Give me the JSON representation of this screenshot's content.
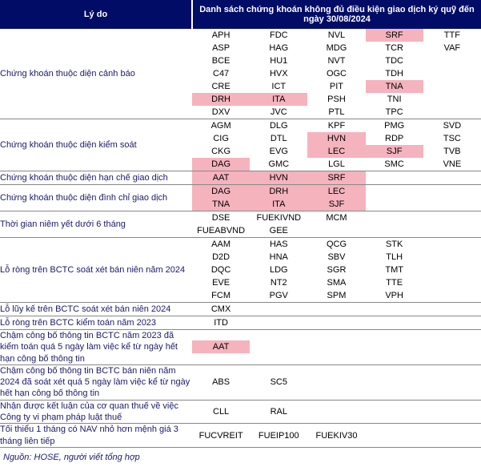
{
  "colors": {
    "header_bg": "#000c66",
    "header_text": "#ffffff",
    "reason_text": "#1a1a6a",
    "highlight_bg": "#f5b3bd",
    "border": "#888888"
  },
  "header": {
    "left": "Lý do",
    "right": "Danh sách chứng khoán không đủ điều kiện giao dịch ký quỹ đến ngày 30/08/2024"
  },
  "sections": [
    {
      "reason": "Chứng khoán thuộc diện cảnh báo",
      "rows": [
        [
          {
            "t": "APH"
          },
          {
            "t": "FDC"
          },
          {
            "t": "NVL"
          },
          {
            "t": "SRF",
            "hl": true
          },
          {
            "t": "TTF"
          }
        ],
        [
          {
            "t": "ASP"
          },
          {
            "t": "HAG"
          },
          {
            "t": "MDG"
          },
          {
            "t": "TCR"
          },
          {
            "t": "VAF"
          }
        ],
        [
          {
            "t": "BCE"
          },
          {
            "t": "HU1"
          },
          {
            "t": "NVT"
          },
          {
            "t": "TDC"
          },
          {
            "t": ""
          }
        ],
        [
          {
            "t": "C47"
          },
          {
            "t": "HVX"
          },
          {
            "t": "OGC"
          },
          {
            "t": "TDH"
          },
          {
            "t": ""
          }
        ],
        [
          {
            "t": "CRE"
          },
          {
            "t": "ICT"
          },
          {
            "t": "PIT"
          },
          {
            "t": "TNA",
            "hl": true
          },
          {
            "t": ""
          }
        ],
        [
          {
            "t": "DRH",
            "hl": true
          },
          {
            "t": "ITA",
            "hl": true
          },
          {
            "t": "PSH"
          },
          {
            "t": "TNI"
          },
          {
            "t": ""
          }
        ],
        [
          {
            "t": "DXV"
          },
          {
            "t": "JVC"
          },
          {
            "t": "PTL"
          },
          {
            "t": "TPC"
          },
          {
            "t": ""
          }
        ]
      ]
    },
    {
      "reason": "Chứng khoán thuộc diện kiểm soát",
      "rows": [
        [
          {
            "t": "AGM"
          },
          {
            "t": "DLG"
          },
          {
            "t": "KPF"
          },
          {
            "t": "PMG"
          },
          {
            "t": "SVD"
          }
        ],
        [
          {
            "t": "CIG"
          },
          {
            "t": "DTL"
          },
          {
            "t": "HVN",
            "hl": true
          },
          {
            "t": "RDP"
          },
          {
            "t": "TSC"
          }
        ],
        [
          {
            "t": "CKG"
          },
          {
            "t": "EVG"
          },
          {
            "t": "LEC",
            "hl": true
          },
          {
            "t": "SJF",
            "hl": true
          },
          {
            "t": "TVB"
          }
        ],
        [
          {
            "t": "DAG",
            "hl": true
          },
          {
            "t": "GMC"
          },
          {
            "t": "LGL"
          },
          {
            "t": "SMC"
          },
          {
            "t": "VNE"
          }
        ]
      ]
    },
    {
      "reason": "Chứng khoán thuộc diện hạn chế giao dịch",
      "rows": [
        [
          {
            "t": "AAT",
            "hl": true
          },
          {
            "t": "HVN",
            "hl": true
          },
          {
            "t": "SRF",
            "hl": true
          },
          {
            "t": ""
          },
          {
            "t": ""
          }
        ]
      ]
    },
    {
      "reason": "Chứng khoán thuộc diện đình chỉ giao dịch",
      "rows": [
        [
          {
            "t": "DAG",
            "hl": true
          },
          {
            "t": "DRH",
            "hl": true
          },
          {
            "t": "LEC",
            "hl": true
          },
          {
            "t": ""
          },
          {
            "t": ""
          }
        ],
        [
          {
            "t": "TNA",
            "hl": true
          },
          {
            "t": "ITA",
            "hl": true
          },
          {
            "t": "SJF",
            "hl": true
          },
          {
            "t": ""
          },
          {
            "t": ""
          }
        ]
      ]
    },
    {
      "reason": "Thời gian niêm yết dưới 6 tháng",
      "rows": [
        [
          {
            "t": "DSE"
          },
          {
            "t": "FUEKIVND"
          },
          {
            "t": "MCM"
          },
          {
            "t": ""
          },
          {
            "t": ""
          }
        ],
        [
          {
            "t": "FUEABVND"
          },
          {
            "t": "GEE"
          },
          {
            "t": ""
          },
          {
            "t": ""
          },
          {
            "t": ""
          }
        ]
      ]
    },
    {
      "reason": "Lỗ ròng trên BCTC soát xét bán niên năm 2024",
      "rows": [
        [
          {
            "t": "AAM"
          },
          {
            "t": "HAS"
          },
          {
            "t": "QCG"
          },
          {
            "t": "STK"
          },
          {
            "t": ""
          }
        ],
        [
          {
            "t": "D2D"
          },
          {
            "t": "HNA"
          },
          {
            "t": "SBV"
          },
          {
            "t": "TLH"
          },
          {
            "t": ""
          }
        ],
        [
          {
            "t": "DQC"
          },
          {
            "t": "LDG"
          },
          {
            "t": "SGR"
          },
          {
            "t": "TMT"
          },
          {
            "t": ""
          }
        ],
        [
          {
            "t": "EVE"
          },
          {
            "t": "NT2"
          },
          {
            "t": "SMA"
          },
          {
            "t": "TTE"
          },
          {
            "t": ""
          }
        ],
        [
          {
            "t": "FCM"
          },
          {
            "t": "PGV"
          },
          {
            "t": "SPM"
          },
          {
            "t": "VPH"
          },
          {
            "t": ""
          }
        ]
      ]
    },
    {
      "reason": "Lỗ lũy kế trên BCTC soát xét bán niên 2024",
      "rows": [
        [
          {
            "t": "CMX"
          },
          {
            "t": ""
          },
          {
            "t": ""
          },
          {
            "t": ""
          },
          {
            "t": ""
          }
        ]
      ]
    },
    {
      "reason": "Lỗ ròng trên BCTC kiểm toán năm 2023",
      "rows": [
        [
          {
            "t": "ITD"
          },
          {
            "t": ""
          },
          {
            "t": ""
          },
          {
            "t": ""
          },
          {
            "t": ""
          }
        ]
      ]
    },
    {
      "reason": "Chậm công bố thông tin BCTC năm 2023 đã kiểm toán quá 5 ngày làm việc kể từ ngày hết hạn công bố thông tin",
      "rows": [
        [
          {
            "t": "AAT",
            "hl": true
          },
          {
            "t": ""
          },
          {
            "t": ""
          },
          {
            "t": ""
          },
          {
            "t": ""
          }
        ]
      ]
    },
    {
      "reason": "Chậm công bố thông tin BCTC bán niên năm 2024 đã soát xét quá 5 ngày làm việc kể từ ngày hết hạn công bố thông tin",
      "rows": [
        [
          {
            "t": "ABS"
          },
          {
            "t": "SC5"
          },
          {
            "t": ""
          },
          {
            "t": ""
          },
          {
            "t": ""
          }
        ]
      ]
    },
    {
      "reason": "Nhận được kết luận của cơ quan thuế về việc Công ty vi phạm pháp luật thuế",
      "rows": [
        [
          {
            "t": "CLL"
          },
          {
            "t": "RAL"
          },
          {
            "t": ""
          },
          {
            "t": ""
          },
          {
            "t": ""
          }
        ]
      ]
    },
    {
      "reason": "Tối thiểu 1 tháng có NAV nhỏ hơn mệnh giá 3 tháng liên tiếp",
      "rows": [
        [
          {
            "t": "FUCVREIT"
          },
          {
            "t": "FUEIP100"
          },
          {
            "t": "FUEKIV30"
          },
          {
            "t": ""
          },
          {
            "t": ""
          }
        ]
      ]
    }
  ],
  "footer": "Nguồn: HOSE, người viết tổng hợp"
}
